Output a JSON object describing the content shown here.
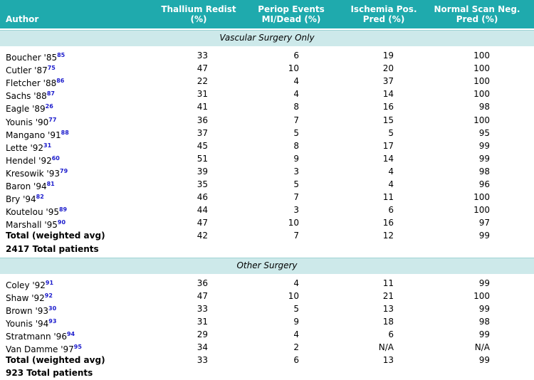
{
  "header": {
    "columns": [
      [
        "Author"
      ],
      [
        "Thallium Redist",
        "(%)"
      ],
      [
        "Periop Events",
        "MI/Dead (%)"
      ],
      [
        "Ischemia Pos.",
        "Pred (%)"
      ],
      [
        "Normal Scan Neg.",
        "Pred (%)"
      ]
    ]
  },
  "sections": [
    {
      "title": "Vascular Surgery Only",
      "rows": [
        {
          "author": "Boucher '85",
          "ref": "85",
          "values": [
            "33",
            "6",
            "19",
            "100"
          ]
        },
        {
          "author": "Cutler '87",
          "ref": "75",
          "values": [
            "47",
            "10",
            "20",
            "100"
          ]
        },
        {
          "author": "Fletcher '88",
          "ref": "86",
          "values": [
            "22",
            "4",
            "37",
            "100"
          ]
        },
        {
          "author": "Sachs '88",
          "ref": "87",
          "values": [
            "31",
            "4",
            "14",
            "100"
          ]
        },
        {
          "author": "Eagle '89",
          "ref": "26",
          "values": [
            "41",
            "8",
            "16",
            "98"
          ]
        },
        {
          "author": "Younis '90",
          "ref": "77",
          "values": [
            "36",
            "7",
            "15",
            "100"
          ]
        },
        {
          "author": "Mangano '91",
          "ref": "88",
          "values": [
            "37",
            "5",
            "5",
            "95"
          ]
        },
        {
          "author": "Lette '92",
          "ref": "31",
          "values": [
            "45",
            "8",
            "17",
            "99"
          ]
        },
        {
          "author": "Hendel '92",
          "ref": "60",
          "values": [
            "51",
            "9",
            "14",
            "99"
          ]
        },
        {
          "author": "Kresowik '93",
          "ref": "79",
          "values": [
            "39",
            "3",
            "4",
            "98"
          ]
        },
        {
          "author": "Baron '94",
          "ref": "81",
          "values": [
            "35",
            "5",
            "4",
            "96"
          ]
        },
        {
          "author": "Bry '94",
          "ref": "82",
          "values": [
            "46",
            "7",
            "11",
            "100"
          ]
        },
        {
          "author": "Koutelou '95",
          "ref": "89",
          "values": [
            "44",
            "3",
            "6",
            "100"
          ]
        },
        {
          "author": "Marshall '95",
          "ref": "90",
          "values": [
            "47",
            "10",
            "16",
            "97"
          ]
        }
      ],
      "total": {
        "label": "Total (weighted avg)",
        "values": [
          "42",
          "7",
          "12",
          "99"
        ]
      },
      "patients": "2417 Total patients"
    },
    {
      "title": "Other Surgery",
      "rows": [
        {
          "author": "Coley '92",
          "ref": "91",
          "values": [
            "36",
            "4",
            "11",
            "99"
          ]
        },
        {
          "author": "Shaw '92",
          "ref": "92",
          "values": [
            "47",
            "10",
            "21",
            "100"
          ]
        },
        {
          "author": "Brown '93",
          "ref": "30",
          "values": [
            "33",
            "5",
            "13",
            "99"
          ]
        },
        {
          "author": "Younis '94",
          "ref": "93",
          "values": [
            "31",
            "9",
            "18",
            "98"
          ]
        },
        {
          "author": "Stratmann '96",
          "ref": "94",
          "values": [
            "29",
            "4",
            "6",
            "99"
          ]
        },
        {
          "author": "Van Damme '97",
          "ref": "95",
          "values": [
            "34",
            "2",
            "N/A",
            "N/A"
          ]
        }
      ],
      "total": {
        "label": "Total (weighted avg)",
        "values": [
          "33",
          "6",
          "13",
          "99"
        ]
      },
      "patients": "923 Total patients"
    }
  ]
}
